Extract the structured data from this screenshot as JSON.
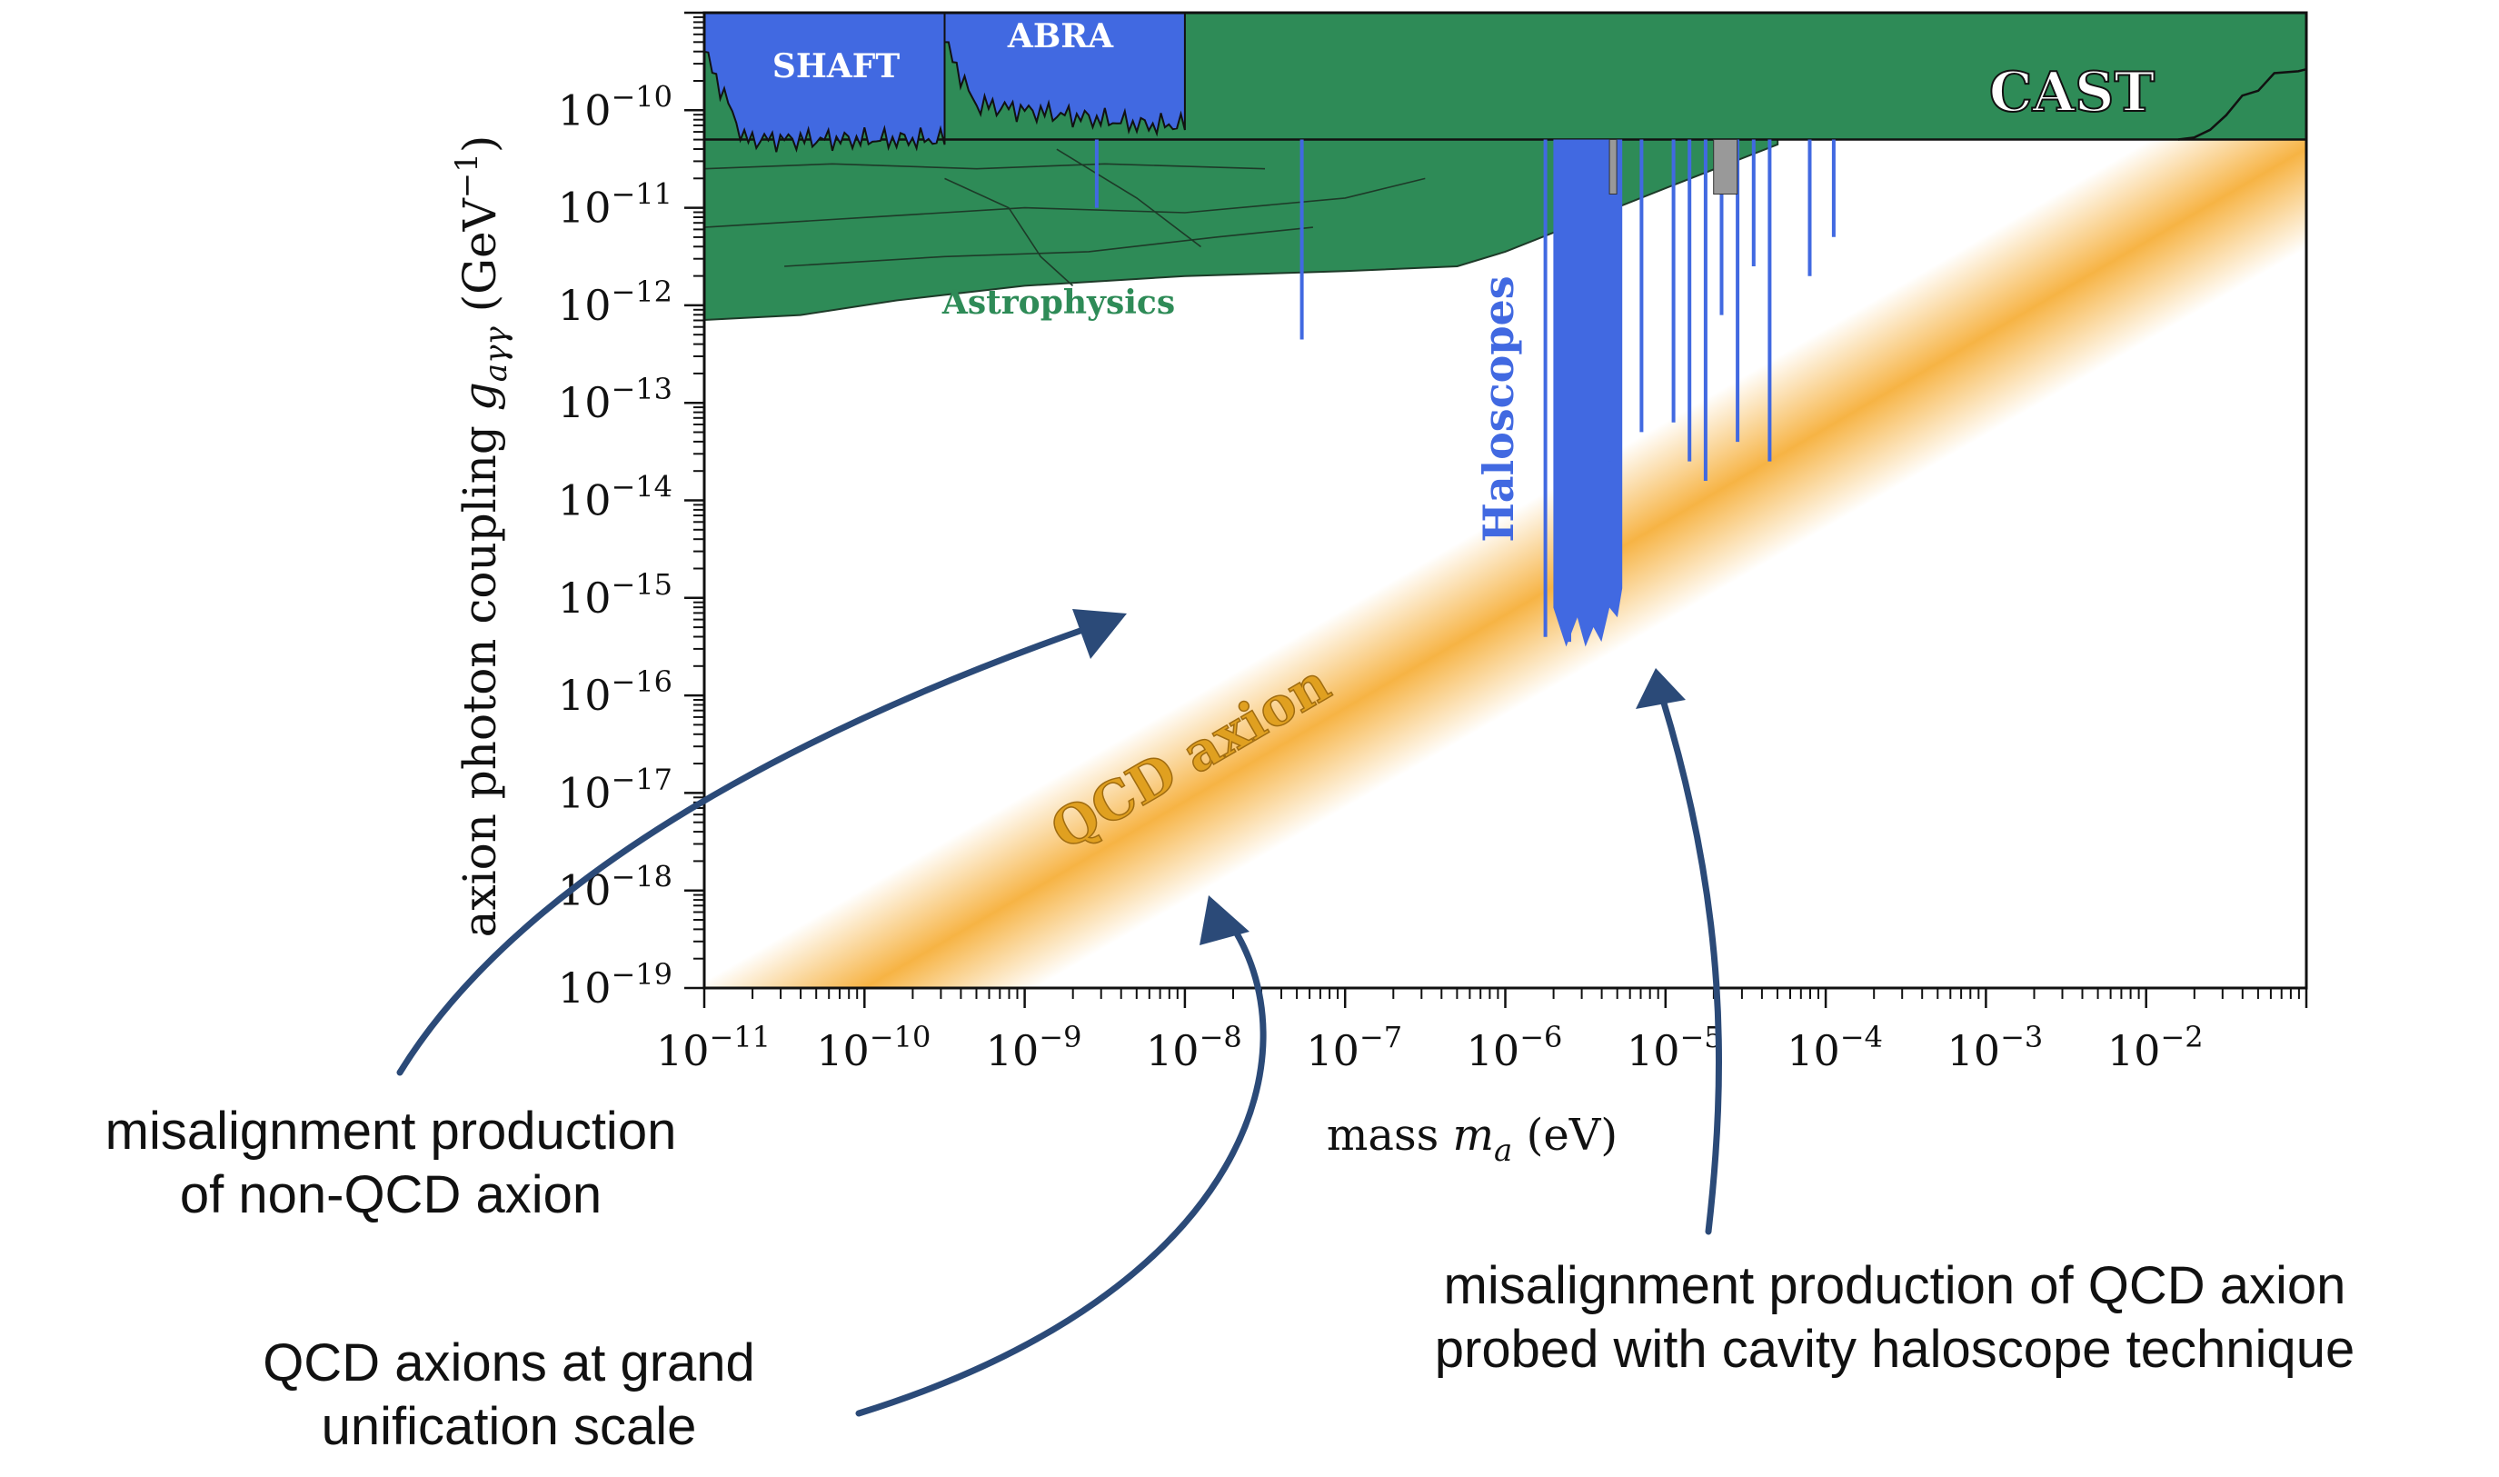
{
  "chart_data": {
    "type": "area",
    "xlabel": "mass m_a (eV)",
    "xlabel_parts": {
      "text": "mass ",
      "symbol": "m",
      "subscript": "a",
      "unit": " (eV)"
    },
    "ylabel": "axion photon coupling g_aγγ (GeV⁻¹)",
    "ylabel_parts": {
      "text": "axion photon coupling ",
      "symbol": "g",
      "subscript": "aγγ",
      "unit_open": " (GeV",
      "unit_sup": "−1",
      "unit_close": ")"
    },
    "x_scale": "log",
    "y_scale": "log",
    "xlim": [
      1e-11,
      0.1
    ],
    "ylim": [
      1e-19,
      1e-09
    ],
    "x_ticks": [
      {
        "base": "10",
        "exp": "−11",
        "log": -11
      },
      {
        "base": "10",
        "exp": "−10",
        "log": -10
      },
      {
        "base": "10",
        "exp": "−9",
        "log": -9
      },
      {
        "base": "10",
        "exp": "−8",
        "log": -8
      },
      {
        "base": "10",
        "exp": "−7",
        "log": -7
      },
      {
        "base": "10",
        "exp": "−6",
        "log": -6
      },
      {
        "base": "10",
        "exp": "−5",
        "log": -5
      },
      {
        "base": "10",
        "exp": "−4",
        "log": -4
      },
      {
        "base": "10",
        "exp": "−3",
        "log": -3
      },
      {
        "base": "10",
        "exp": "−2",
        "log": -2
      }
    ],
    "y_ticks": [
      {
        "base": "10",
        "exp": "−10",
        "log": -10
      },
      {
        "base": "10",
        "exp": "−11",
        "log": -11
      },
      {
        "base": "10",
        "exp": "−12",
        "log": -12
      },
      {
        "base": "10",
        "exp": "−13",
        "log": -13
      },
      {
        "base": "10",
        "exp": "−14",
        "log": -14
      },
      {
        "base": "10",
        "exp": "−15",
        "log": -15
      },
      {
        "base": "10",
        "exp": "−16",
        "log": -16
      },
      {
        "base": "10",
        "exp": "−17",
        "log": -17
      },
      {
        "base": "10",
        "exp": "−18",
        "log": -18
      },
      {
        "base": "10",
        "exp": "−19",
        "log": -19
      }
    ],
    "regions": [
      {
        "name": "CAST",
        "color": "#2e8b57",
        "log_mass_range": [
          -11,
          -1.0
        ],
        "log_coupling_lower": -10.3
      },
      {
        "name": "Astrophysics",
        "color": "#2e8b57",
        "boundary": [
          {
            "log_m": -11,
            "log_g": -12.15
          },
          {
            "log_m": -10.4,
            "log_g": -12.1
          },
          {
            "log_m": -9.8,
            "log_g": -11.95
          },
          {
            "log_m": -9.0,
            "log_g": -11.8
          },
          {
            "log_m": -8.0,
            "log_g": -11.7
          },
          {
            "log_m": -7.0,
            "log_g": -11.65
          },
          {
            "log_m": -6.3,
            "log_g": -11.6
          },
          {
            "log_m": -6.0,
            "log_g": -11.45
          },
          {
            "log_m": -5.0,
            "log_g": -10.8
          },
          {
            "log_m": -4.3,
            "log_g": -10.35
          }
        ]
      },
      {
        "name": "SHAFT",
        "color": "#4169e1",
        "log_mass_range": [
          -11.0,
          -9.5
        ],
        "log_coupling_min": -10.3
      },
      {
        "name": "ABRA",
        "color": "#4169e1",
        "log_mass_range": [
          -9.5,
          -8.0
        ],
        "log_coupling_min": -10.2
      },
      {
        "name": "Haloscopes",
        "color": "#4169e1",
        "log_mass_range": [
          -6.0,
          -4.0
        ],
        "log_coupling_min": -15.5
      },
      {
        "name": "QCD axion",
        "color": "#f5a623",
        "band_center": [
          {
            "log_m": -10.0,
            "log_g": -19.0
          },
          {
            "log_m": -1.0,
            "log_g": -10.4
          }
        ]
      }
    ],
    "haloscope_spikes": [
      {
        "log_m": -8.55,
        "log_g_min": -11.0
      },
      {
        "log_m": -7.27,
        "log_g_min": -12.35
      },
      {
        "log_m": -5.75,
        "log_g_min": -15.4
      },
      {
        "log_m": -5.6,
        "log_g_min": -15.45
      },
      {
        "log_m": -5.35,
        "log_g_min": -13.6
      },
      {
        "log_m": -5.15,
        "log_g_min": -13.3
      },
      {
        "log_m": -4.95,
        "log_g_min": -13.2
      },
      {
        "log_m": -4.85,
        "log_g_min": -13.6
      },
      {
        "log_m": -4.75,
        "log_g_min": -13.8
      },
      {
        "log_m": -4.65,
        "log_g_min": -12.1
      },
      {
        "log_m": -4.55,
        "log_g_min": -13.4
      },
      {
        "log_m": -4.45,
        "log_g_min": -11.6
      },
      {
        "log_m": -4.35,
        "log_g_min": -13.6
      },
      {
        "log_m": -4.1,
        "log_g_min": -11.7
      },
      {
        "log_m": -3.95,
        "log_g_min": -11.3
      }
    ],
    "grid": false,
    "legend": "none"
  },
  "annotations": [
    {
      "id": "non-qcd",
      "lines": [
        "misalignment production",
        "of non-QCD axion"
      ]
    },
    {
      "id": "gut",
      "lines": [
        "QCD axions at grand",
        "unification scale"
      ]
    },
    {
      "id": "cavity",
      "lines": [
        "misalignment production of QCD axion",
        "probed with cavity haloscope technique"
      ]
    }
  ],
  "colors": {
    "astro_green": "#2e8b57",
    "experiment_blue": "#4169e1",
    "qcd_orange": "#f5a623",
    "arrow_blue": "#2b4a78"
  }
}
